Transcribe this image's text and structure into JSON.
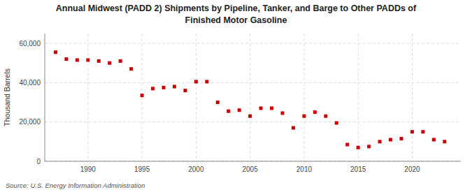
{
  "chart_data": {
    "type": "scatter",
    "title": "Annual Midwest (PADD 2) Shipments by Pipeline, Tanker, and Barge to Other PADDs of",
    "subtitle": "Finished Motor Gasoline",
    "y_label": "Thousand Barrels",
    "annotations": [
      "Source: U.S. Energy Information Administration"
    ],
    "x": [
      1987,
      1988,
      1989,
      1990,
      1991,
      1992,
      1993,
      1994,
      1995,
      1996,
      1997,
      1998,
      1999,
      2000,
      2001,
      2002,
      2003,
      2004,
      2005,
      2006,
      2007,
      2008,
      2009,
      2010,
      2011,
      2012,
      2013,
      2014,
      2015,
      2016,
      2017,
      2018,
      2019,
      2020,
      2021,
      2022,
      2023
    ],
    "values": [
      55500,
      52000,
      51500,
      51500,
      51000,
      50000,
      51000,
      47000,
      33500,
      37000,
      37500,
      38000,
      36000,
      40500,
      40500,
      30000,
      25500,
      26000,
      23000,
      27000,
      27000,
      24500,
      17000,
      23000,
      25000,
      23000,
      19500,
      8500,
      7000,
      7500,
      10000,
      11000,
      11500,
      15000,
      15000,
      11000,
      10000
    ],
    "color": "#cc0000",
    "marker": "square",
    "xlim": [
      1986.0,
      2024.5
    ],
    "xticks": [
      1990,
      1995,
      2000,
      2005,
      2010,
      2015,
      2020
    ],
    "ylim": [
      0,
      65000
    ],
    "yticks": [
      0,
      {
        "value": 20000,
        "label": "20,000"
      },
      {
        "value": 40000,
        "label": "40,000"
      },
      {
        "value": 60000,
        "label": "60,000"
      }
    ],
    "grid": true
  }
}
